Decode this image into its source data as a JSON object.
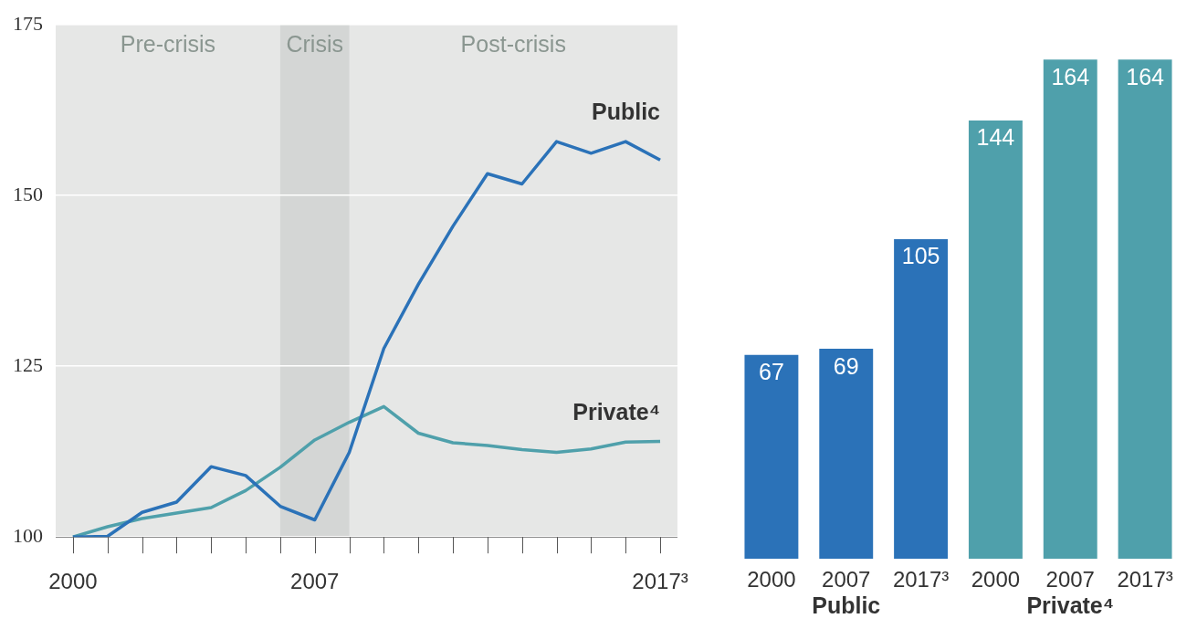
{
  "chart_data": [
    {
      "type": "line",
      "x": [
        2000,
        2001,
        2002,
        2003,
        2004,
        2005,
        2006,
        2007,
        2008,
        2009,
        2010,
        2011,
        2012,
        2013,
        2014,
        2015,
        2016,
        2017
      ],
      "series": [
        {
          "name": "Public",
          "color": "#2b72b8",
          "values": [
            100,
            100.1,
            103.6,
            105.1,
            110.3,
            109.0,
            104.5,
            102.5,
            112.4,
            127.6,
            137.0,
            145.5,
            153.2,
            151.7,
            157.9,
            156.2,
            157.9,
            155.2
          ]
        },
        {
          "name": "Private⁴",
          "color": "#4fa0ab",
          "values": [
            100,
            101.5,
            102.7,
            103.5,
            104.3,
            106.8,
            110.2,
            114.2,
            116.8,
            119.1,
            115.2,
            113.8,
            113.4,
            112.8,
            112.4,
            112.9,
            113.9,
            114.0
          ]
        }
      ],
      "xlim": [
        1999.5,
        2017.5
      ],
      "xticks": [
        2000,
        2007,
        {
          "value": 2017,
          "label": "2017³"
        }
      ],
      "ylim": [
        100,
        175
      ],
      "yticks": [
        100,
        125,
        150,
        175
      ],
      "grid": "y",
      "legend": false,
      "marker": "none",
      "line_style": "solid",
      "bands": [
        {
          "axis": "x",
          "from": 2006,
          "to": 2008,
          "label": "Crisis",
          "color": "#d4d6d5"
        }
      ],
      "annotations": [
        "Pre-crisis",
        "Post-crisis"
      ]
    },
    {
      "type": "bar",
      "categories": [
        "2000",
        "2007",
        "2017³",
        "2000",
        "2007",
        "2017³"
      ],
      "series": [
        {
          "name": "Public",
          "color": "#2b72b8",
          "values": [
            67,
            69,
            105,
            null,
            null,
            null
          ]
        },
        {
          "name": "Private⁴",
          "color": "#4fa0ab",
          "values": [
            null,
            null,
            null,
            144,
            164,
            164
          ]
        }
      ],
      "data_labels": true,
      "legend": false,
      "grid": false
    }
  ]
}
